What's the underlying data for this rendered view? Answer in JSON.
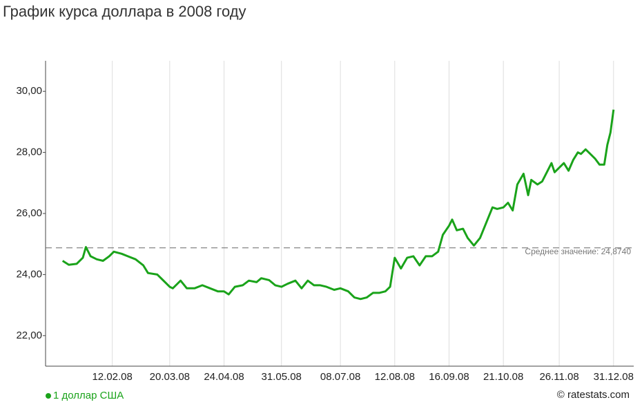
{
  "chart_data": {
    "type": "line",
    "title": "График курса доллара в 2008 году",
    "x": [
      "11.01.08",
      "15.01.08",
      "20.01.08",
      "24.01.08",
      "26.01.08",
      "29.01.08",
      "02.02.08",
      "06.02.08",
      "10.02.08",
      "13.02.08",
      "18.02.08",
      "22.02.08",
      "27.02.08",
      "03.03.08",
      "06.03.08",
      "12.03.08",
      "15.03.08",
      "20.03.08",
      "22.03.08",
      "27.03.08",
      "31.03.08",
      "05.04.08",
      "10.04.08",
      "15.04.08",
      "20.04.08",
      "24.04.08",
      "27.04.08",
      "01.05.08",
      "06.05.08",
      "10.05.08",
      "15.05.08",
      "18.05.08",
      "23.05.08",
      "27.05.08",
      "31.05.08",
      "04.06.08",
      "09.06.08",
      "13.06.08",
      "17.06.08",
      "21.06.08",
      "25.06.08",
      "29.06.08",
      "04.07.08",
      "08.07.08",
      "13.07.08",
      "17.07.08",
      "21.07.08",
      "25.07.08",
      "29.07.08",
      "02.08.08",
      "06.08.08",
      "09.08.08",
      "12.08.08",
      "16.08.08",
      "20.08.08",
      "24.08.08",
      "28.08.08",
      "01.09.08",
      "05.09.08",
      "09.09.08",
      "12.09.08",
      "16.09.08",
      "18.09.08",
      "21.09.08",
      "25.09.08",
      "28.09.08",
      "02.10.08",
      "06.10.08",
      "10.10.08",
      "14.10.08",
      "17.10.08",
      "21.10.08",
      "24.10.08",
      "27.10.08",
      "30.10.08",
      "03.11.08",
      "06.11.08",
      "08.11.08",
      "12.11.08",
      "15.11.08",
      "19.11.08",
      "21.11.08",
      "23.11.08",
      "26.11.08",
      "29.11.08",
      "02.12.08",
      "05.12.08",
      "08.12.08",
      "10.12.08",
      "13.12.08",
      "16.12.08",
      "19.12.08",
      "22.12.08",
      "25.12.08",
      "27.12.08",
      "29.12.08",
      "31.12.08"
    ],
    "series": [
      {
        "name": "1 доллар США",
        "color": "#1aa31a",
        "values": [
          24.45,
          24.32,
          24.35,
          24.55,
          24.9,
          24.6,
          24.5,
          24.45,
          24.6,
          24.75,
          24.68,
          24.6,
          24.5,
          24.3,
          24.05,
          24.0,
          23.85,
          23.6,
          23.55,
          23.8,
          23.55,
          23.55,
          23.65,
          23.55,
          23.45,
          23.45,
          23.35,
          23.6,
          23.65,
          23.8,
          23.75,
          23.88,
          23.82,
          23.65,
          23.6,
          23.7,
          23.8,
          23.55,
          23.8,
          23.65,
          23.65,
          23.6,
          23.5,
          23.55,
          23.45,
          23.25,
          23.2,
          23.25,
          23.4,
          23.4,
          23.45,
          23.6,
          24.55,
          24.2,
          24.55,
          24.6,
          24.3,
          24.6,
          24.6,
          24.75,
          25.3,
          25.6,
          25.8,
          25.45,
          25.5,
          25.2,
          24.95,
          25.2,
          25.7,
          26.2,
          26.15,
          26.2,
          26.35,
          26.1,
          26.95,
          27.3,
          26.6,
          27.1,
          26.95,
          27.05,
          27.45,
          27.65,
          27.35,
          27.5,
          27.65,
          27.4,
          27.75,
          28.0,
          27.95,
          28.1,
          27.95,
          27.8,
          27.6,
          27.6,
          28.25,
          28.65,
          29.4
        ]
      }
    ],
    "mean": {
      "value": 24.874,
      "label": "Среднее значение: 24,8740"
    },
    "xlim": [
      "31.12.07",
      "13.01.09"
    ],
    "xticks": [
      "12.02.08",
      "20.03.08",
      "24.04.08",
      "31.05.08",
      "08.07.08",
      "12.08.08",
      "16.09.08",
      "21.10.08",
      "26.11.08",
      "31.12.08"
    ],
    "ylim": [
      21,
      31
    ],
    "yticks": [
      {
        "value": 22,
        "label": "22,00"
      },
      {
        "value": 24,
        "label": "24,00"
      },
      {
        "value": 26,
        "label": "26,00"
      },
      {
        "value": 28,
        "label": "28,00"
      },
      {
        "value": 30,
        "label": "30,00"
      }
    ],
    "grid": true,
    "credit": "© ratestats.com"
  }
}
